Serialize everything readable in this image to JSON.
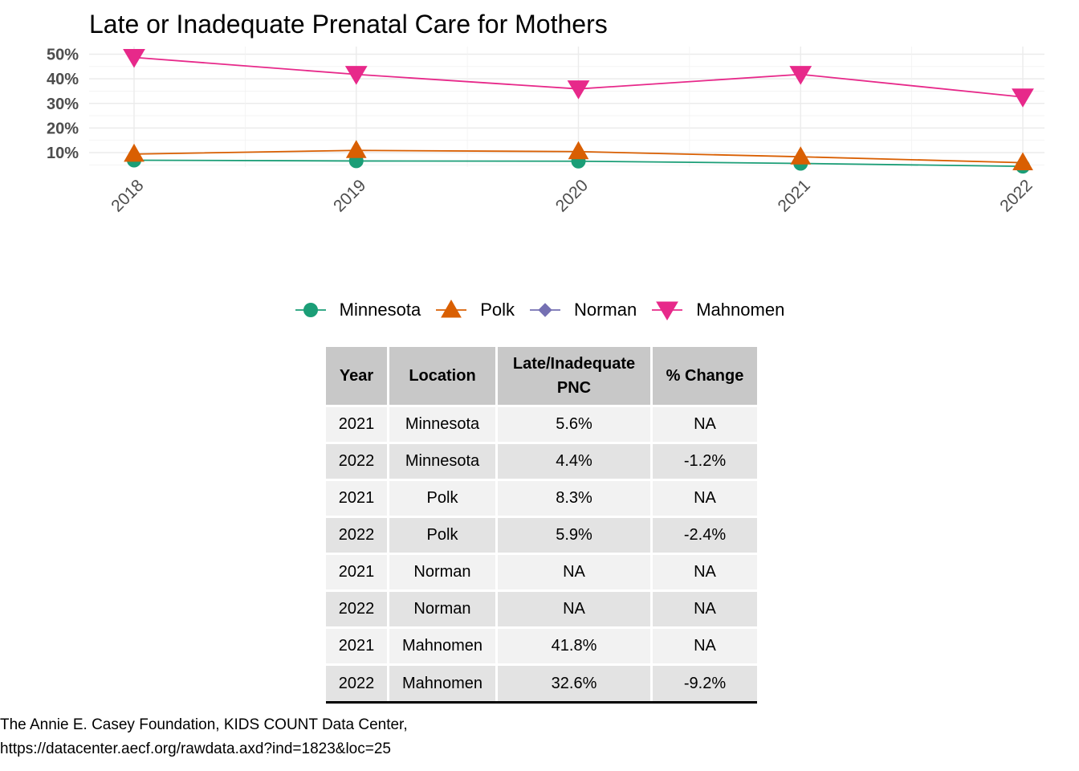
{
  "chart_data": {
    "type": "line",
    "title": "Late or Inadequate Prenatal Care for Mothers",
    "categories": [
      "2018",
      "2019",
      "2020",
      "2021",
      "2022"
    ],
    "y_tick_labels": [
      "10%",
      "20%",
      "30%",
      "40%",
      "50%"
    ],
    "y_ticks": [
      10,
      20,
      30,
      40,
      50
    ],
    "ylim": [
      4,
      51.5
    ],
    "grid": true,
    "legend_position": "bottom",
    "series": [
      {
        "name": "Minnesota",
        "values": [
          6.9,
          6.6,
          6.5,
          5.6,
          4.4
        ],
        "color": "#1b9e77",
        "marker": "circle"
      },
      {
        "name": "Polk",
        "values": [
          9.4,
          10.9,
          10.4,
          8.3,
          5.9
        ],
        "color": "#d95f02",
        "marker": "triangle-up"
      },
      {
        "name": "Norman",
        "values": [
          null,
          null,
          null,
          null,
          null
        ],
        "color": "#7570b3",
        "marker": "diamond"
      },
      {
        "name": "Mahnomen",
        "values": [
          48.7,
          41.8,
          35.9,
          41.8,
          32.6
        ],
        "color": "#e7298a",
        "marker": "triangle-down"
      }
    ]
  },
  "table": {
    "headers": [
      "Year",
      "Location",
      "Late/Inadequate PNC",
      "% Change"
    ],
    "rows": [
      [
        "2021",
        "Minnesota",
        "5.6%",
        "NA"
      ],
      [
        "2022",
        "Minnesota",
        "4.4%",
        "-1.2%"
      ],
      [
        "2021",
        "Polk",
        "8.3%",
        "NA"
      ],
      [
        "2022",
        "Polk",
        "5.9%",
        "-2.4%"
      ],
      [
        "2021",
        "Norman",
        "NA",
        "NA"
      ],
      [
        "2022",
        "Norman",
        "NA",
        "NA"
      ],
      [
        "2021",
        "Mahnomen",
        "41.8%",
        "NA"
      ],
      [
        "2022",
        "Mahnomen",
        "32.6%",
        "-9.2%"
      ]
    ]
  },
  "caption": {
    "line1": "The Annie E. Casey Foundation, KIDS COUNT Data Center,",
    "line2": "https://datacenter.aecf.org/rawdata.axd?ind=1823&loc=25"
  }
}
